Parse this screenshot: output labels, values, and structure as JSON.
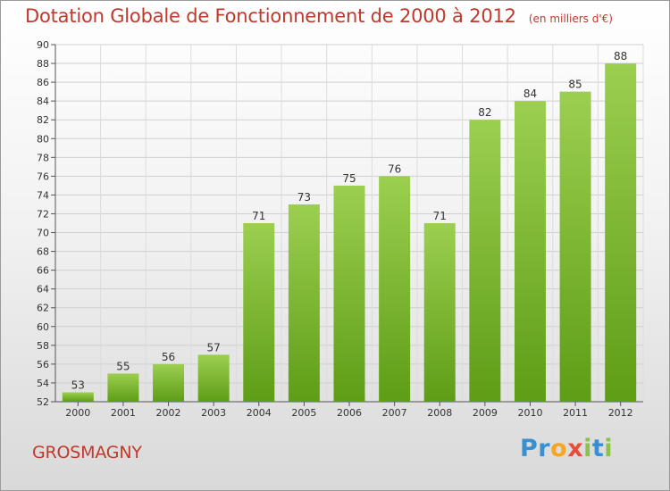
{
  "title": "Dotation Globale de Fonctionnement de 2000 à 2012",
  "unit_note": "(en milliers d'€)",
  "town": "GROSMAGNY",
  "logo": {
    "letters": [
      "P",
      "r",
      "o",
      "x",
      "i",
      "t",
      "i"
    ],
    "colors": [
      "#3a8fd1",
      "#3a8fd1",
      "#f5a623",
      "#e74c3c",
      "#8bc34a",
      "#3a8fd1",
      "#8bc34a"
    ]
  },
  "colors": {
    "title": "#c0392b",
    "bar_light": "#9ccf50",
    "bar_dark": "#5e9d16"
  },
  "chart_data": {
    "type": "bar",
    "title": "Dotation Globale de Fonctionnement de 2000 à 2012",
    "xlabel": "",
    "ylabel": "",
    "categories": [
      "2000",
      "2001",
      "2002",
      "2003",
      "2004",
      "2005",
      "2006",
      "2007",
      "2008",
      "2009",
      "2010",
      "2011",
      "2012"
    ],
    "values": [
      53,
      55,
      56,
      57,
      71,
      73,
      75,
      76,
      71,
      82,
      84,
      85,
      88
    ],
    "ylim": [
      52,
      90
    ],
    "yticks": [
      52,
      54,
      56,
      58,
      60,
      62,
      64,
      66,
      68,
      70,
      72,
      74,
      76,
      78,
      80,
      82,
      84,
      86,
      88,
      90
    ],
    "grid": true
  }
}
